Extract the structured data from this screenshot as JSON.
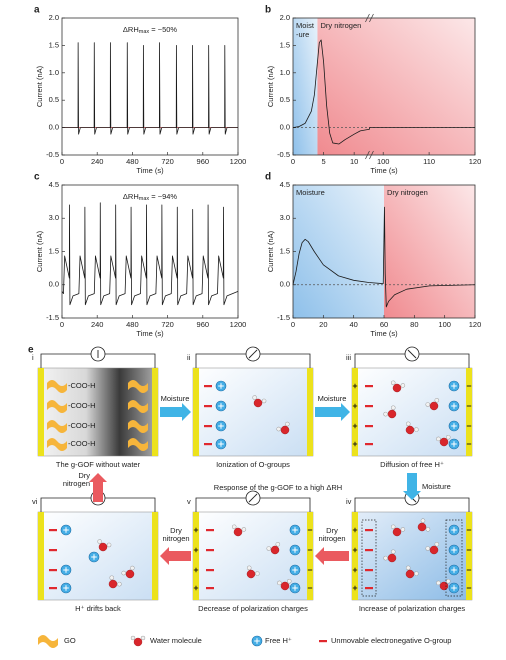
{
  "chart_data": [
    {
      "type": "line",
      "panel": "a",
      "annotation": [
        "ΔRH",
        "max",
        " = ~50%"
      ],
      "xlabel": "Time (s)",
      "ylabel": "Current (nA)",
      "xlim": [
        0,
        1200
      ],
      "xticks": [
        0,
        240,
        480,
        720,
        960,
        1200
      ],
      "ylim": [
        -0.5,
        2
      ],
      "yticks": [
        -0.5,
        {
          "value": 0,
          "label": "0.0"
        },
        0.5,
        {
          "value": 1,
          "label": "1.0"
        },
        1.5,
        {
          "value": 2,
          "label": "2.0"
        }
      ],
      "hline": {
        "value": 0,
        "color": "#e0323a",
        "dashed": false
      },
      "color": "#1a1a1a",
      "x": [
        0,
        109,
        110,
        113,
        125,
        219,
        220,
        223,
        235,
        329,
        330,
        333,
        345,
        444,
        445,
        448,
        460,
        554,
        555,
        558,
        570,
        664,
        665,
        668,
        680,
        779,
        780,
        783,
        795,
        889,
        890,
        893,
        905,
        999,
        1000,
        1003,
        1015,
        1109,
        1110,
        1113,
        1125,
        1200
      ],
      "values": [
        0,
        0,
        1.55,
        -0.12,
        0,
        0,
        1.55,
        -0.12,
        0,
        0,
        1.55,
        -0.12,
        0,
        0,
        1.55,
        -0.12,
        0,
        0,
        1.5,
        -0.12,
        0,
        0,
        1.55,
        -0.12,
        0,
        0,
        1.5,
        -0.12,
        0,
        0,
        1.5,
        -0.12,
        0,
        0,
        1.5,
        -0.12,
        0,
        0,
        1.5,
        -0.12,
        0,
        0
      ]
    },
    {
      "type": "line",
      "panel": "b",
      "xlabel": "Time (s)",
      "ylabel": "Current (nA)",
      "x_segments": [
        {
          "xlim": [
            0,
            12.5
          ],
          "xticks": [
            0,
            5,
            10
          ]
        },
        {
          "xlim": [
            97,
            120
          ],
          "xticks": [
            100,
            110,
            120
          ]
        }
      ],
      "ylim": [
        -0.5,
        2
      ],
      "yticks": [
        -0.5,
        {
          "value": 0,
          "label": "0.0"
        },
        0.5,
        {
          "value": 1,
          "label": "1.0"
        },
        1.5,
        {
          "value": 2,
          "label": "2.0"
        }
      ],
      "regions": [
        {
          "label": [
            "Moist",
            "-ure"
          ],
          "xlim": [
            0,
            4
          ],
          "color": "#8ec0ea"
        },
        {
          "label": [
            "Dry nitrogen"
          ],
          "xlim": [
            4,
            120
          ],
          "color": "#f08a8f"
        }
      ],
      "hline": {
        "value": 0,
        "color": "#555555",
        "dashed": true
      },
      "color": "#1a1a1a",
      "x": [
        0,
        1,
        2,
        3,
        3.5,
        4,
        4.3,
        4.6,
        5,
        5.5,
        6,
        6.5,
        7.5,
        8.5,
        10,
        11,
        12.5,
        97,
        120
      ],
      "values": [
        0,
        0.02,
        0.08,
        0.3,
        0.6,
        1.2,
        1.55,
        1.6,
        1.2,
        0.4,
        -0.1,
        -0.28,
        -0.3,
        -0.22,
        -0.12,
        -0.06,
        -0.03,
        0,
        0
      ]
    },
    {
      "type": "line",
      "panel": "c",
      "annotation": [
        "ΔRH",
        "max",
        " = ~94%"
      ],
      "xlabel": "Time (s)",
      "ylabel": "Current (nA)",
      "xlim": [
        0,
        1200
      ],
      "xticks": [
        0,
        240,
        480,
        720,
        960,
        1200
      ],
      "ylim": [
        -1.5,
        4.5
      ],
      "yticks": [
        -1.5,
        {
          "value": 0,
          "label": "0.0"
        },
        1.5,
        {
          "value": 3,
          "label": "3.0"
        },
        4.5
      ],
      "color": "#1a1a1a",
      "x": [
        0,
        10,
        18,
        50,
        51,
        54,
        75,
        115,
        123,
        155,
        156,
        159,
        180,
        220,
        228,
        260,
        261,
        264,
        285,
        325,
        333,
        365,
        366,
        369,
        390,
        430,
        438,
        470,
        471,
        474,
        495,
        535,
        543,
        575,
        576,
        579,
        600,
        640,
        648,
        680,
        681,
        684,
        705,
        745,
        753,
        785,
        786,
        789,
        810,
        850,
        858,
        890,
        891,
        894,
        915,
        955,
        963,
        995,
        996,
        999,
        1020,
        1060,
        1068,
        1100,
        1101,
        1104,
        1125,
        1200
      ],
      "values": [
        -0.3,
        -0.4,
        1.3,
        0.3,
        3.6,
        -0.9,
        -0.5,
        -0.4,
        1.3,
        0.3,
        3.5,
        -0.9,
        -0.5,
        -0.4,
        1.3,
        0.3,
        3.7,
        -0.9,
        -0.5,
        -0.4,
        1.3,
        0.3,
        3.6,
        -0.9,
        -0.5,
        -0.4,
        1.3,
        0.3,
        3.5,
        -0.9,
        -0.5,
        -0.4,
        1.3,
        0.3,
        3.6,
        -0.9,
        -0.5,
        -0.4,
        1.3,
        0.3,
        3.6,
        -0.9,
        -0.5,
        -0.4,
        1.3,
        0.3,
        3.5,
        -0.9,
        -0.5,
        -0.4,
        1.3,
        0.3,
        3.4,
        -0.9,
        -0.5,
        -0.4,
        1.3,
        0.3,
        3.6,
        -0.9,
        -0.5,
        -0.4,
        1.3,
        0.3,
        3.5,
        -0.9,
        -0.5,
        -0.3
      ]
    },
    {
      "type": "line",
      "panel": "d",
      "xlabel": "Time (s)",
      "ylabel": "Current (nA)",
      "xlim": [
        0,
        120
      ],
      "xticks": [
        0,
        20,
        40,
        60,
        80,
        100,
        120
      ],
      "ylim": [
        -1.5,
        4.5
      ],
      "yticks": [
        -1.5,
        {
          "value": 0,
          "label": "0.0"
        },
        1.5,
        {
          "value": 3,
          "label": "3.0"
        },
        4.5
      ],
      "regions": [
        {
          "label": [
            "Moisture"
          ],
          "xlim": [
            0,
            60
          ],
          "color": "#8ec0ea"
        },
        {
          "label": [
            "Dry nitrogen"
          ],
          "xlim": [
            60,
            120
          ],
          "color": "#f08a8f"
        }
      ],
      "hline": {
        "value": 0,
        "color": "#555555",
        "dashed": true
      },
      "color": "#1a1a1a",
      "x": [
        0,
        2,
        4,
        6,
        8,
        10,
        14,
        20,
        30,
        40,
        50,
        59.5,
        60.3,
        60.8,
        61.5,
        63,
        67,
        75,
        90,
        120
      ],
      "values": [
        0,
        0.6,
        1.4,
        1.9,
        2.05,
        1.95,
        1.5,
        0.9,
        0.4,
        0.2,
        0.1,
        0.05,
        3.5,
        0.5,
        -1.0,
        -0.75,
        -0.45,
        -0.2,
        -0.05,
        0
      ]
    }
  ],
  "diagram": {
    "panel": "e",
    "title": "Response of the g-GOF to a high ΔRH",
    "group_label": "-COO-H",
    "steps": [
      {
        "numeral": "i",
        "caption": "The g-GOF without water"
      },
      {
        "numeral": "ii",
        "caption": "Ionization of O-groups"
      },
      {
        "numeral": "iii",
        "caption": "Diffusion of free H⁺"
      },
      {
        "numeral": "iv",
        "caption": "Increase of polarization charges"
      },
      {
        "numeral": "v",
        "caption": "Decrease of polarization charges"
      },
      {
        "numeral": "vi",
        "caption": "H⁺ drifts back"
      }
    ],
    "transitions": [
      [
        "Moisture"
      ],
      [
        "Moisture"
      ],
      [
        "Moisture"
      ],
      [
        "Dry",
        "nitrogen"
      ],
      [
        "Dry",
        "nitrogen"
      ],
      [
        "Dry",
        "nitrogen"
      ]
    ],
    "legend": [
      "GO",
      "Water molecule",
      "Free H⁺",
      "Unmovable electronegative O-group"
    ]
  }
}
